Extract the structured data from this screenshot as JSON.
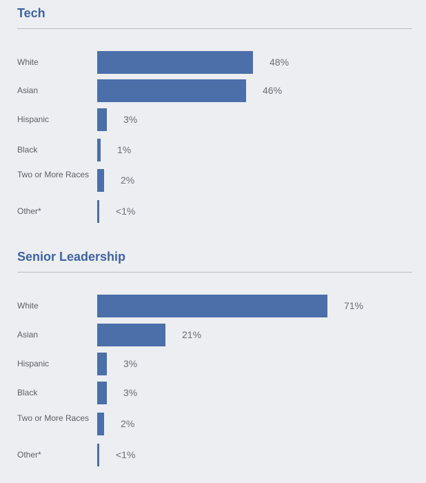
{
  "sections": [
    {
      "title": "Tech",
      "chart_data": {
        "type": "bar",
        "orientation": "horizontal",
        "categories": [
          "White",
          "Asian",
          "Hispanic",
          "Black",
          "Two or More Races",
          "Other*"
        ],
        "values": [
          48,
          46,
          3,
          1,
          2,
          0.5
        ],
        "value_labels": [
          "48%",
          "46%",
          "3%",
          "1%",
          "2%",
          "<1%"
        ],
        "xlim": [
          0,
          71
        ],
        "grid": false,
        "bar_color": "#4a6fa9"
      }
    },
    {
      "title": "Senior Leadership",
      "chart_data": {
        "type": "bar",
        "orientation": "horizontal",
        "categories": [
          "White",
          "Asian",
          "Hispanic",
          "Black",
          "Two or More Races",
          "Other*"
        ],
        "values": [
          71,
          21,
          3,
          3,
          2,
          0.5
        ],
        "value_labels": [
          "71%",
          "21%",
          "3%",
          "3%",
          "2%",
          "<1%"
        ],
        "xlim": [
          0,
          71
        ],
        "grid": false,
        "bar_color": "#4a6fa9"
      }
    }
  ],
  "colors": {
    "accent": "#3f63a3",
    "bar": "#4a6fa9",
    "background": "#eceef1"
  }
}
